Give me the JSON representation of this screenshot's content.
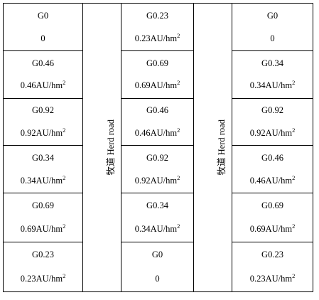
{
  "road_label": "牧道  Herd road",
  "plots": [
    [
      {
        "code": "G0",
        "rate": "0",
        "unit_sup": ""
      },
      {
        "code": "G0.23",
        "rate": "0.23AU/hm",
        "unit_sup": "2"
      },
      {
        "code": "G0",
        "rate": "0",
        "unit_sup": ""
      }
    ],
    [
      {
        "code": "G0.46",
        "rate": "0.46AU/hm",
        "unit_sup": "2"
      },
      {
        "code": "G0.69",
        "rate": "0.69AU/hm",
        "unit_sup": "2"
      },
      {
        "code": "G0.34",
        "rate": "0.34AU/hm",
        "unit_sup": "2"
      }
    ],
    [
      {
        "code": "G0.92",
        "rate": "0.92AU/hm",
        "unit_sup": "2"
      },
      {
        "code": "G0.46",
        "rate": "0.46AU/hm",
        "unit_sup": "2"
      },
      {
        "code": "G0.92",
        "rate": "0.92AU/hm",
        "unit_sup": "2"
      }
    ],
    [
      {
        "code": "G0.34",
        "rate": "0.34AU/hm",
        "unit_sup": "2"
      },
      {
        "code": "G0.92",
        "rate": "0.92AU/hm",
        "unit_sup": "2"
      },
      {
        "code": "G0.46",
        "rate": "0.46AU/hm",
        "unit_sup": "2"
      }
    ],
    [
      {
        "code": "G0.69",
        "rate": "0.69AU/hm",
        "unit_sup": "2"
      },
      {
        "code": "G0.34",
        "rate": "0.34AU/hm",
        "unit_sup": "2"
      },
      {
        "code": "G0.69",
        "rate": "0.69AU/hm",
        "unit_sup": "2"
      }
    ],
    [
      {
        "code": "G0.23",
        "rate": "0.23AU/hm",
        "unit_sup": "2"
      },
      {
        "code": "G0",
        "rate": "0",
        "unit_sup": ""
      },
      {
        "code": "G0.23",
        "rate": "0.23AU/hm",
        "unit_sup": "2"
      }
    ]
  ]
}
